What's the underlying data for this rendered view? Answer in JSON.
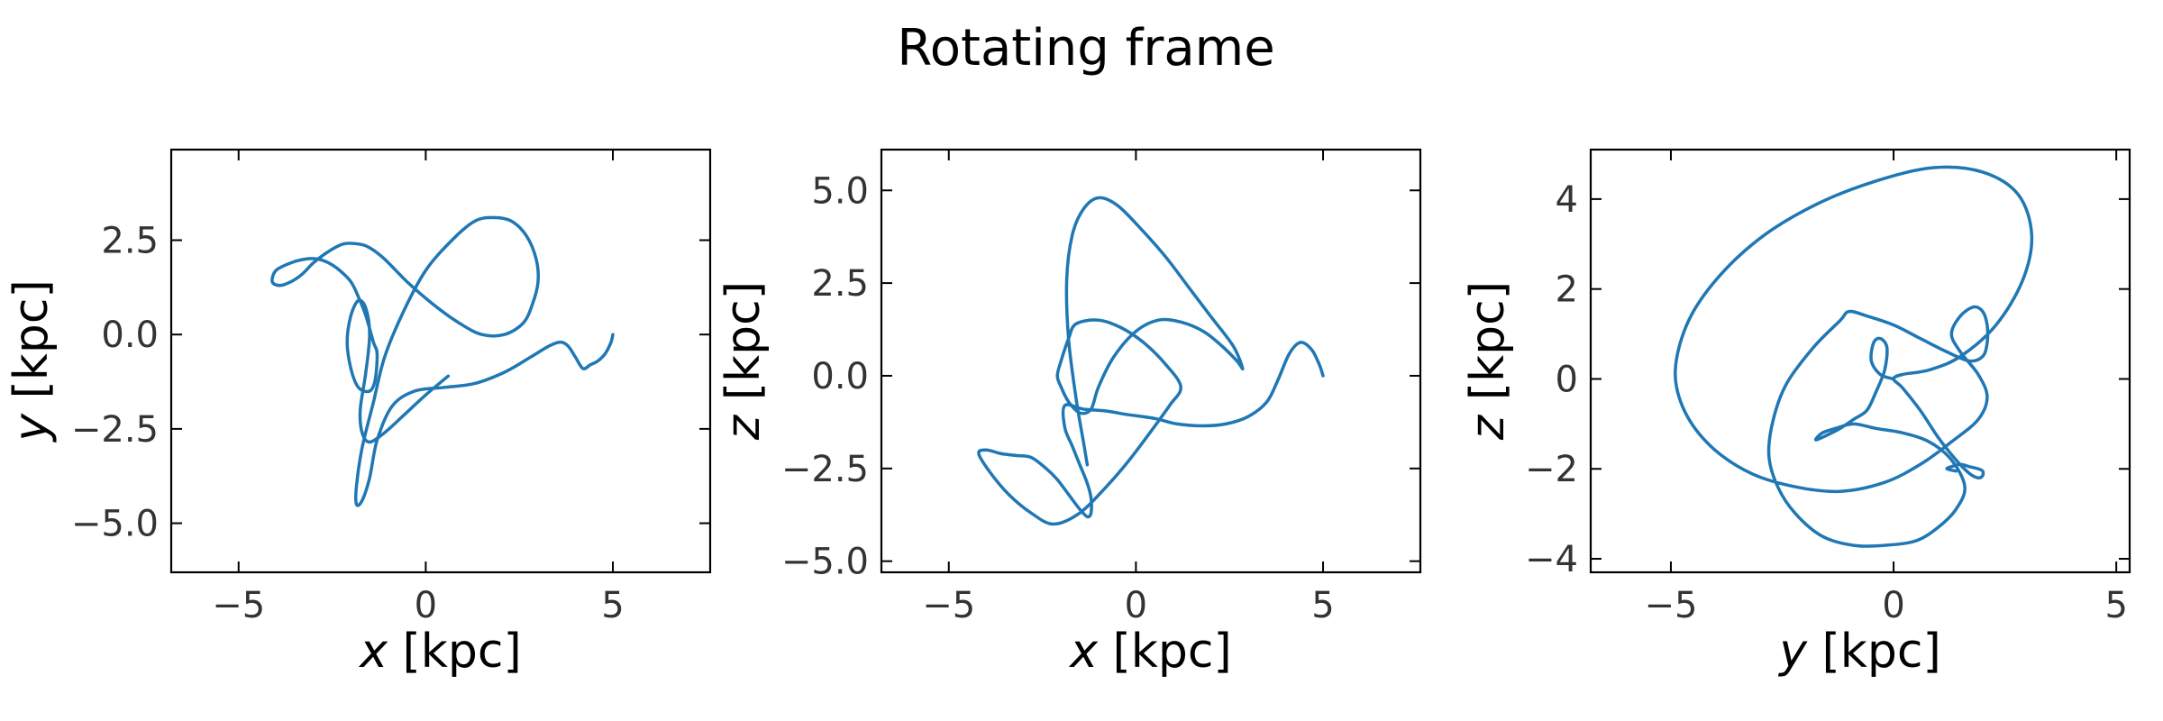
{
  "figure": {
    "suptitle": "Rotating frame"
  },
  "chart_data": [
    {
      "type": "line",
      "xlabel_var": "x",
      "xlabel_unit": " [kpc]",
      "ylabel_var": "y",
      "ylabel_unit": " [kpc]",
      "xlim": [
        -6.8,
        7.6
      ],
      "ylim": [
        -6.3,
        4.9
      ],
      "xticks": [
        {
          "v": -5,
          "label": "−5"
        },
        {
          "v": 0,
          "label": "0"
        },
        {
          "v": 5,
          "label": "5"
        }
      ],
      "yticks": [
        {
          "v": 2.5,
          "label": "2.5"
        },
        {
          "v": 0,
          "label": "0.0"
        },
        {
          "v": -2.5,
          "label": "−2.5"
        },
        {
          "v": -5,
          "label": "−5.0"
        }
      ],
      "grid": false,
      "series": [
        {
          "color": "#1f77b4",
          "x": [
            0.6,
            0.0,
            -0.6,
            -1.1,
            -1.5,
            -1.7,
            -1.75,
            -1.6,
            -1.5,
            -1.6,
            -1.8,
            -2.0,
            -2.1,
            -2.0,
            -1.8,
            -1.5,
            -1.35,
            -1.3,
            -1.4,
            -1.6,
            -1.8,
            -2.0,
            -2.3,
            -2.6,
            -2.9,
            -3.2,
            -3.6,
            -4.0,
            -4.1,
            -3.9,
            -3.6,
            -3.3,
            -3.0,
            -2.6,
            -2.2,
            -1.8,
            -1.5,
            -1.1,
            -0.5,
            0.2,
            0.9,
            1.5,
            2.1,
            2.6,
            2.85,
            3.0,
            2.95,
            2.7,
            2.3,
            1.8,
            1.3,
            0.7,
            0.0,
            -0.6,
            -1.1,
            -1.4,
            -1.7,
            -1.85,
            -1.85,
            -1.7,
            -1.5,
            -1.3,
            -0.9,
            -0.3,
            0.5,
            1.3,
            2.1,
            2.8,
            3.3,
            3.6,
            3.8,
            4.0,
            4.2,
            4.4,
            4.6,
            4.8,
            4.95,
            5.0
          ],
          "y": [
            -1.1,
            -1.6,
            -2.15,
            -2.6,
            -2.85,
            -2.6,
            -2.0,
            -1.0,
            0.0,
            0.7,
            0.9,
            0.5,
            -0.2,
            -0.9,
            -1.4,
            -1.5,
            -1.2,
            -0.5,
            -0.2,
            0.5,
            1.0,
            1.4,
            1.7,
            1.9,
            2.0,
            2.0,
            1.9,
            1.7,
            1.4,
            1.3,
            1.4,
            1.6,
            1.9,
            2.2,
            2.4,
            2.4,
            2.3,
            2.0,
            1.4,
            0.8,
            0.3,
            0.0,
            0.0,
            0.3,
            0.8,
            1.4,
            2.0,
            2.6,
            3.0,
            3.1,
            3.0,
            2.5,
            1.7,
            0.6,
            -0.6,
            -1.8,
            -3.0,
            -4.0,
            -4.5,
            -4.4,
            -3.8,
            -2.8,
            -1.9,
            -1.5,
            -1.4,
            -1.3,
            -1.0,
            -0.6,
            -0.3,
            -0.2,
            -0.3,
            -0.6,
            -0.9,
            -0.8,
            -0.7,
            -0.5,
            -0.2,
            0.0
          ]
        }
      ]
    },
    {
      "type": "line",
      "xlabel_var": "x",
      "xlabel_unit": " [kpc]",
      "ylabel_var": "z",
      "ylabel_unit": " [kpc]",
      "xlim": [
        -6.8,
        7.6
      ],
      "ylim": [
        -5.3,
        6.1
      ],
      "xticks": [
        {
          "v": -5,
          "label": "−5"
        },
        {
          "v": 0,
          "label": "0"
        },
        {
          "v": 5,
          "label": "5"
        }
      ],
      "yticks": [
        {
          "v": 5,
          "label": "5.0"
        },
        {
          "v": 2.5,
          "label": "2.5"
        },
        {
          "v": 0,
          "label": "0.0"
        },
        {
          "v": -2.5,
          "label": "−2.5"
        },
        {
          "v": -5,
          "label": "−5.0"
        }
      ],
      "grid": false,
      "series": [
        {
          "color": "#1f77b4",
          "x": [
            5.0,
            4.9,
            4.7,
            4.4,
            4.1,
            3.8,
            3.5,
            3.0,
            2.4,
            1.8,
            1.1,
            0.5,
            -0.2,
            -0.8,
            -1.4,
            -1.9,
            -1.9,
            -1.7,
            -1.5,
            -1.3,
            -1.2,
            -1.2,
            -1.3,
            -1.5,
            -1.8,
            -2.1,
            -2.4,
            -2.8,
            -3.2,
            -3.6,
            -4.0,
            -4.2,
            -3.9,
            -3.4,
            -2.8,
            -2.2,
            -1.5,
            -0.8,
            -0.2,
            0.4,
            0.9,
            1.2,
            0.8,
            0.2,
            -0.4,
            -1.0,
            -1.6,
            -1.8,
            -2.0,
            -2.1,
            -2.0,
            -1.8,
            -1.5,
            -1.2,
            -1.0,
            -0.6,
            0.0,
            0.6,
            1.2,
            1.8,
            2.3,
            2.7,
            2.85,
            2.6,
            2.0,
            1.4,
            0.8,
            0.1,
            -0.5,
            -1.0,
            -1.4,
            -1.7,
            -1.85,
            -1.8,
            -1.6,
            -1.4,
            -1.3
          ],
          "y": [
            0.0,
            0.3,
            0.7,
            0.9,
            0.6,
            -0.1,
            -0.7,
            -1.1,
            -1.3,
            -1.35,
            -1.3,
            -1.15,
            -1.05,
            -0.95,
            -0.9,
            -0.8,
            -1.4,
            -1.9,
            -2.4,
            -2.9,
            -3.3,
            -3.7,
            -3.8,
            -3.6,
            -3.2,
            -2.8,
            -2.5,
            -2.2,
            -2.15,
            -2.1,
            -2.0,
            -2.1,
            -2.6,
            -3.2,
            -3.7,
            -4.0,
            -3.7,
            -3.0,
            -2.3,
            -1.5,
            -0.8,
            -0.3,
            0.3,
            0.9,
            1.3,
            1.5,
            1.4,
            1.0,
            0.4,
            0.0,
            -0.3,
            -0.7,
            -1.0,
            -0.9,
            -0.3,
            0.5,
            1.2,
            1.5,
            1.45,
            1.2,
            0.8,
            0.4,
            0.2,
            0.8,
            1.6,
            2.4,
            3.2,
            4.0,
            4.6,
            4.8,
            4.5,
            3.8,
            2.6,
            1.0,
            -0.6,
            -1.8,
            -2.4
          ]
        }
      ]
    },
    {
      "type": "line",
      "xlabel_var": "y",
      "xlabel_unit": " [kpc]",
      "ylabel_var": "z",
      "ylabel_unit": " [kpc]",
      "xlim": [
        -6.8,
        5.3
      ],
      "ylim": [
        -4.3,
        5.1
      ],
      "xticks": [
        {
          "v": -5,
          "label": "−5"
        },
        {
          "v": 0,
          "label": "0"
        },
        {
          "v": 5,
          "label": "5"
        }
      ],
      "yticks": [
        {
          "v": 4,
          "label": "4"
        },
        {
          "v": 2,
          "label": "2"
        },
        {
          "v": 0,
          "label": "0"
        },
        {
          "v": -2,
          "label": "−2"
        },
        {
          "v": -4,
          "label": "−4"
        }
      ],
      "grid": false,
      "series": [
        {
          "color": "#1f77b4",
          "x": [
            0.0,
            -0.3,
            -0.5,
            -0.45,
            -0.3,
            -0.15,
            -0.2,
            -0.4,
            -0.6,
            -0.9,
            -1.2,
            -1.6,
            -1.75,
            -1.6,
            -1.3,
            -0.9,
            -0.4,
            0.2,
            0.8,
            1.3,
            1.6,
            1.4,
            1.0,
            0.5,
            -0.2,
            -0.9,
            -1.6,
            -2.2,
            -2.6,
            -2.8,
            -2.7,
            -2.4,
            -1.8,
            -1.2,
            -1.0,
            -0.6,
            0.0,
            0.6,
            1.2,
            1.7,
            2.0,
            2.1,
            2.1,
            2.0,
            1.8,
            1.5,
            1.3,
            1.5,
            1.9,
            2.1,
            1.9,
            1.3,
            0.6,
            -0.2,
            -1.2,
            -2.2,
            -3.2,
            -4.1,
            -4.7,
            -4.9,
            -4.6,
            -3.9,
            -2.9,
            -1.7,
            -0.4,
            0.9,
            2.0,
            2.8,
            3.1,
            2.9,
            2.3,
            1.5,
            0.8,
            0.2,
            0.0,
            0.2,
            0.6,
            1.0,
            1.4,
            1.7,
            1.9,
            2.0,
            2.0,
            1.9,
            1.7,
            1.5,
            1.3,
            1.2,
            1.4
          ],
          "y": [
            0.0,
            0.1,
            0.4,
            0.8,
            0.9,
            0.7,
            0.2,
            -0.3,
            -0.7,
            -0.9,
            -1.1,
            -1.3,
            -1.35,
            -1.2,
            -1.1,
            -1.0,
            -1.1,
            -1.2,
            -1.4,
            -1.8,
            -2.4,
            -2.9,
            -3.3,
            -3.6,
            -3.7,
            -3.7,
            -3.5,
            -3.0,
            -2.4,
            -1.7,
            -0.9,
            -0.1,
            0.7,
            1.3,
            1.5,
            1.4,
            1.2,
            0.9,
            0.6,
            0.4,
            0.5,
            0.8,
            1.2,
            1.5,
            1.6,
            1.4,
            1.0,
            0.6,
            0.1,
            -0.4,
            -0.9,
            -1.4,
            -1.9,
            -2.3,
            -2.5,
            -2.4,
            -2.1,
            -1.5,
            -0.7,
            0.2,
            1.3,
            2.3,
            3.2,
            3.9,
            4.4,
            4.7,
            4.6,
            4.1,
            3.2,
            2.2,
            1.2,
            0.5,
            0.2,
            0.1,
            0.0,
            -0.2,
            -0.7,
            -1.3,
            -1.8,
            -2.1,
            -2.2,
            -2.15,
            -2.05,
            -2.0,
            -1.95,
            -1.9,
            -1.95,
            -2.0,
            -2.05
          ]
        }
      ]
    }
  ]
}
